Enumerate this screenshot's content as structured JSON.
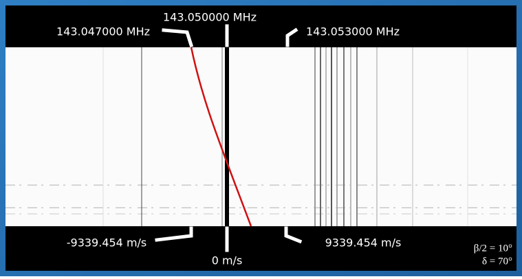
{
  "frequency_labels": {
    "left": "143.047000 MHz",
    "center": "143.050000 MHz",
    "right": "143.053000 MHz"
  },
  "velocity_labels": {
    "left": "-9339.454 m/s",
    "center": "0 m/s",
    "right": "9339.454 m/s"
  },
  "parameters": [
    "β/2 = 10°",
    "δ = 70°"
  ]
}
